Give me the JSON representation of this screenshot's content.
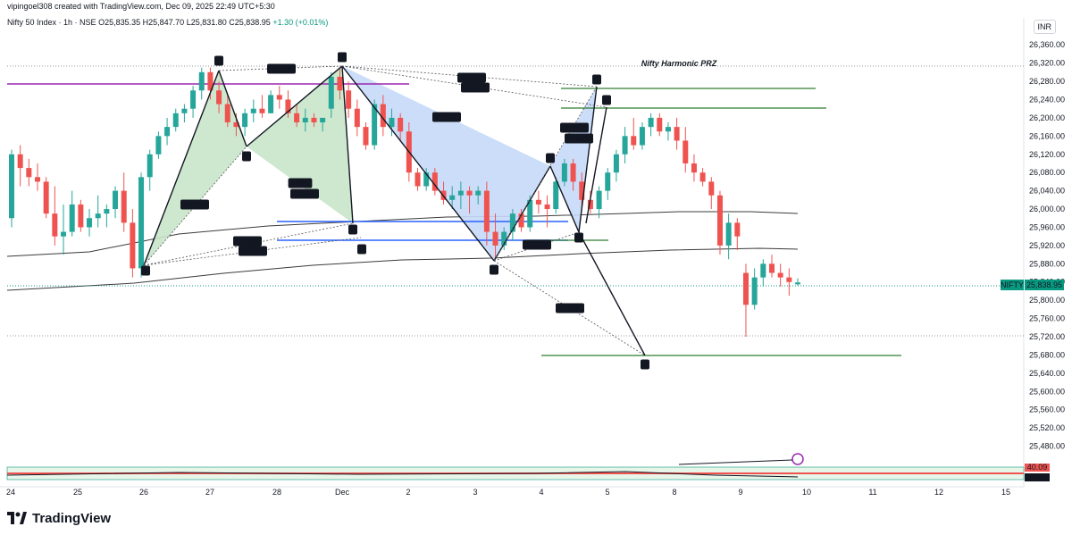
{
  "header": {
    "creator_line": "vipingoel308 created with TradingView.com, Dec 09, 2025 22:49 UTC+5:30",
    "symbol": "Nifty 50 Index · 1h · NSE",
    "ohlc_o": "O25,835.35",
    "ohlc_h": "H25,847.70",
    "ohlc_l": "L25,831.80",
    "ohlc_c": "C25,838.95",
    "change": "+1.30 (+0.01%)",
    "currency": "INR"
  },
  "footer": {
    "brand": "TradingView"
  },
  "colors": {
    "up": "#26a69a",
    "down": "#ef5350",
    "green_pattern": "#c8e6c9",
    "blue_pattern": "#c5d9f7",
    "title_green": "#43a047"
  },
  "chart_data": {
    "type": "candlestick",
    "title": "Nifty Harmonic PRZ",
    "y_range": [
      25440,
      26380
    ],
    "y_ticks": [
      "26,360.00",
      "26,320.00",
      "26,280.00",
      "26,240.00",
      "26,200.00",
      "26,160.00",
      "26,120.00",
      "26,080.00",
      "26,040.00",
      "26,000.00",
      "25,960.00",
      "25,920.00",
      "25,880.00",
      "25,840.00",
      "25,800.00",
      "25,760.00",
      "25,720.00",
      "25,680.00",
      "25,640.00",
      "25,600.00",
      "25,560.00",
      "25,520.00",
      "25,480.00"
    ],
    "x_ticks": [
      "24",
      "25",
      "26",
      "27",
      "28",
      "Dec",
      "2",
      "3",
      "4",
      "5",
      "8",
      "9",
      "10",
      "11",
      "12",
      "15"
    ],
    "last_price_label": "NIFTY",
    "last_price": "25,838.95",
    "indicator_values": [
      "40.09",
      "37.38"
    ],
    "candles": [
      [
        25980,
        26130,
        25960,
        26120
      ],
      [
        26120,
        26140,
        26050,
        26090
      ],
      [
        26090,
        26110,
        26050,
        26070
      ],
      [
        26070,
        26100,
        26040,
        26060
      ],
      [
        26060,
        26070,
        25980,
        25990
      ],
      [
        25990,
        26050,
        25920,
        25940
      ],
      [
        25940,
        26010,
        25900,
        25950
      ],
      [
        25950,
        26040,
        25940,
        26010
      ],
      [
        26010,
        26020,
        25950,
        25960
      ],
      [
        25960,
        26000,
        25940,
        25980
      ],
      [
        25980,
        26030,
        25960,
        25990
      ],
      [
        25990,
        26010,
        25960,
        26000
      ],
      [
        26000,
        26050,
        25980,
        26040
      ],
      [
        26040,
        26080,
        25950,
        25970
      ],
      [
        25970,
        26000,
        25850,
        25870
      ],
      [
        25870,
        26080,
        25850,
        26070
      ],
      [
        26070,
        26130,
        26040,
        26120
      ],
      [
        26120,
        26170,
        26110,
        26160
      ],
      [
        26160,
        26200,
        26140,
        26180
      ],
      [
        26180,
        26220,
        26170,
        26210
      ],
      [
        26210,
        26230,
        26190,
        26220
      ],
      [
        26220,
        26270,
        26200,
        26260
      ],
      [
        26260,
        26310,
        26240,
        26300
      ],
      [
        26300,
        26310,
        26240,
        26260
      ],
      [
        26260,
        26280,
        26210,
        26230
      ],
      [
        26230,
        26250,
        26180,
        26190
      ],
      [
        26190,
        26210,
        26160,
        26180
      ],
      [
        26180,
        26220,
        26160,
        26210
      ],
      [
        26210,
        26240,
        26190,
        26220
      ],
      [
        26220,
        26250,
        26200,
        26210
      ],
      [
        26210,
        26260,
        26210,
        26250
      ],
      [
        26250,
        26270,
        26220,
        26240
      ],
      [
        26240,
        26260,
        26200,
        26210
      ],
      [
        26210,
        26230,
        26180,
        26190
      ],
      [
        26190,
        26220,
        26170,
        26200
      ],
      [
        26200,
        26210,
        26180,
        26190
      ],
      [
        26190,
        26200,
        26170,
        26200
      ],
      [
        26220,
        26300,
        26200,
        26290
      ],
      [
        26290,
        26310,
        26240,
        26260
      ],
      [
        26260,
        26280,
        26200,
        26220
      ],
      [
        26220,
        26240,
        26160,
        26180
      ],
      [
        26180,
        26190,
        26130,
        26140
      ],
      [
        26140,
        26240,
        26130,
        26230
      ],
      [
        26230,
        26250,
        26160,
        26180
      ],
      [
        26180,
        26220,
        26160,
        26200
      ],
      [
        26200,
        26210,
        26150,
        26170
      ],
      [
        26170,
        26190,
        26060,
        26080
      ],
      [
        26080,
        26090,
        26040,
        26050
      ],
      [
        26050,
        26090,
        26040,
        26080
      ],
      [
        26080,
        26090,
        26030,
        26040
      ],
      [
        26040,
        26060,
        26010,
        26020
      ],
      [
        26020,
        26050,
        26000,
        26030
      ],
      [
        26030,
        26060,
        26000,
        26040
      ],
      [
        26040,
        26050,
        25990,
        26030
      ],
      [
        26030,
        26050,
        26010,
        26040
      ],
      [
        26040,
        26060,
        25920,
        25950
      ],
      [
        25950,
        25990,
        25890,
        25920
      ],
      [
        25920,
        25960,
        25910,
        25950
      ],
      [
        25950,
        26000,
        25930,
        25990
      ],
      [
        25990,
        26000,
        25950,
        25960
      ],
      [
        25960,
        26030,
        25950,
        26020
      ],
      [
        26020,
        26040,
        25990,
        26010
      ],
      [
        26010,
        26030,
        25960,
        26000
      ],
      [
        26000,
        26070,
        25990,
        26060
      ],
      [
        26060,
        26110,
        26050,
        26100
      ],
      [
        26100,
        26110,
        26040,
        26060
      ],
      [
        26060,
        26080,
        26000,
        26020
      ],
      [
        26020,
        26040,
        25990,
        26000
      ],
      [
        26000,
        26050,
        25980,
        26040
      ],
      [
        26040,
        26090,
        26020,
        26080
      ],
      [
        26080,
        26130,
        26060,
        26120
      ],
      [
        26120,
        26180,
        26100,
        26160
      ],
      [
        26160,
        26200,
        26130,
        26140
      ],
      [
        26140,
        26190,
        26130,
        26180
      ],
      [
        26180,
        26210,
        26160,
        26200
      ],
      [
        26200,
        26210,
        26160,
        26170
      ],
      [
        26170,
        26190,
        26150,
        26180
      ],
      [
        26180,
        26200,
        26130,
        26150
      ],
      [
        26150,
        26180,
        26080,
        26100
      ],
      [
        26100,
        26120,
        26060,
        26080
      ],
      [
        26080,
        26090,
        26050,
        26060
      ],
      [
        26060,
        26070,
        26000,
        26030
      ],
      [
        26030,
        26040,
        25900,
        25920
      ],
      [
        25920,
        25990,
        25890,
        25970
      ],
      [
        25970,
        25980,
        25910,
        25940
      ],
      [
        25860,
        25880,
        25720,
        25790
      ],
      [
        25790,
        25870,
        25780,
        25850
      ],
      [
        25850,
        25890,
        25830,
        25880
      ],
      [
        25880,
        25900,
        25850,
        25860
      ],
      [
        25860,
        25880,
        25830,
        25850
      ],
      [
        25850,
        25870,
        25810,
        25840
      ],
      [
        25835,
        25848,
        25832,
        25839
      ]
    ],
    "patterns": {
      "green_points": [
        "X",
        "A",
        "B",
        "A",
        "D",
        "D"
      ],
      "blue_points": [
        "A",
        "B",
        "C",
        "D",
        "C",
        "D"
      ],
      "ratios": [
        "1.056",
        "0.401",
        "1.91",
        "2.145",
        "0.785",
        "0.885",
        "0.886",
        "0.784",
        "0.483",
        "2.271",
        "1.949",
        "0.655",
        "1.999"
      ]
    }
  }
}
